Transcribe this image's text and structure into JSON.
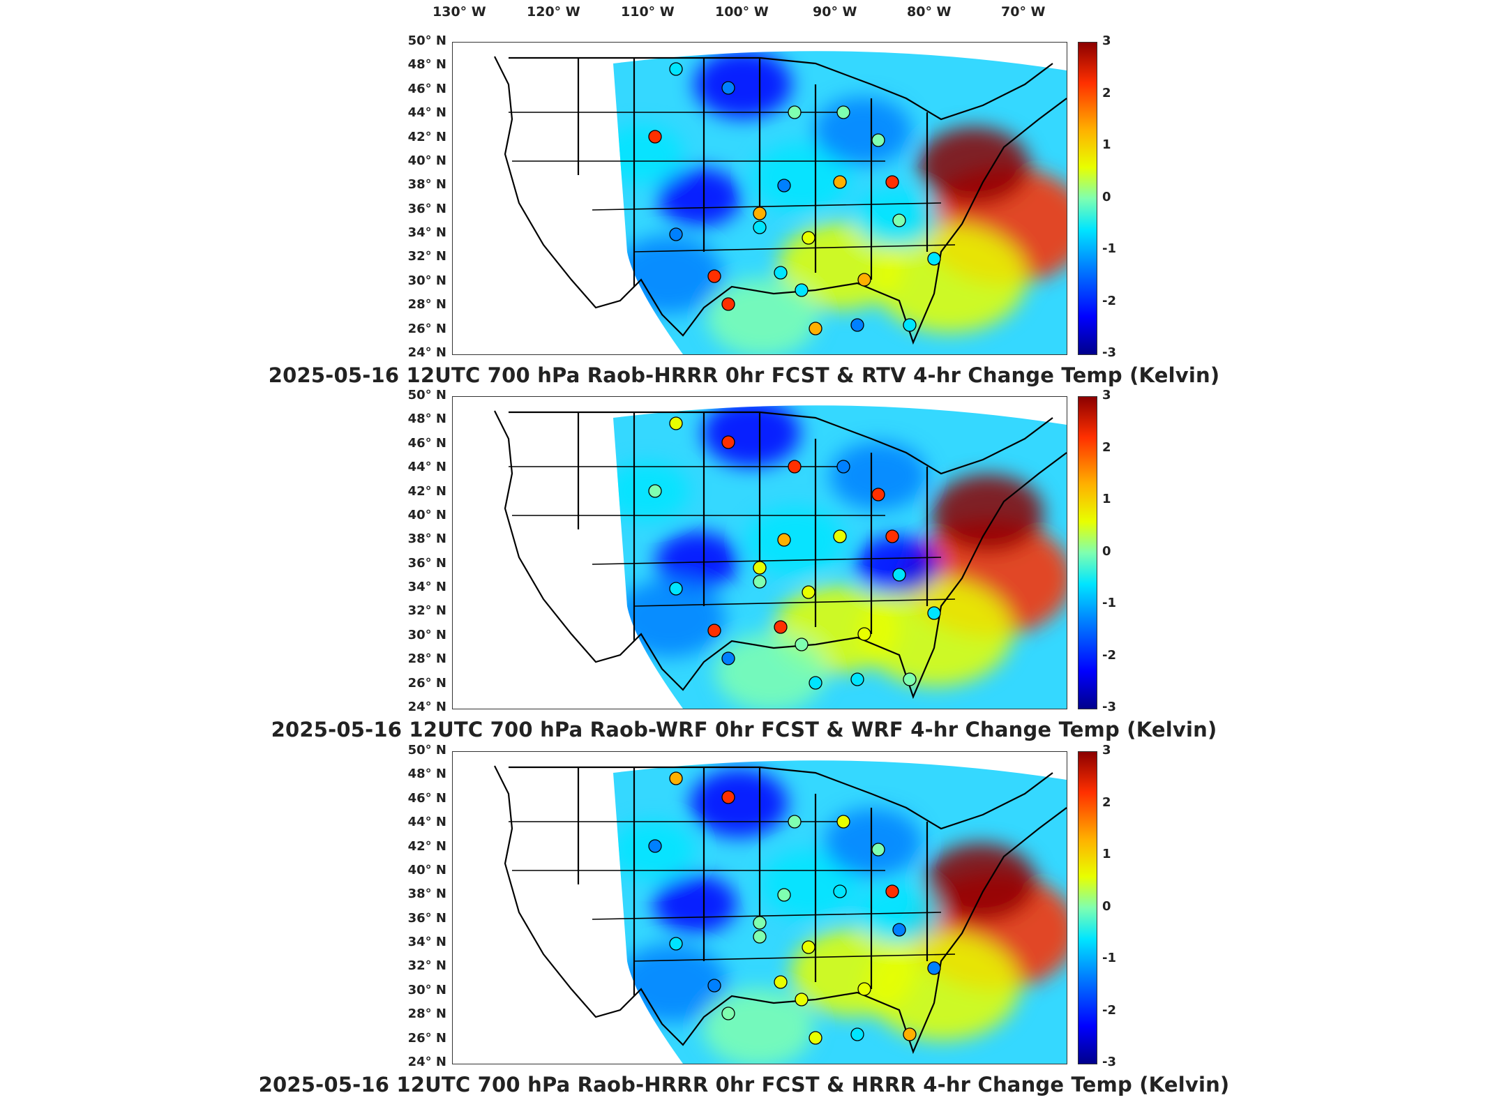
{
  "longitude_labels": [
    "130° W",
    "120° W",
    "110° W",
    "100° W",
    "90° W",
    "80° W",
    "70° W"
  ],
  "latitude_labels": [
    "50° N",
    "48° N",
    "46° N",
    "44° N",
    "42° N",
    "40° N",
    "38° N",
    "36° N",
    "34° N",
    "32° N",
    "30° N",
    "28° N",
    "26° N",
    "24° N"
  ],
  "colorbar_ticks": [
    "3",
    "2",
    "1",
    "0",
    "-1",
    "-2",
    "-3"
  ],
  "colorbar_range": [
    -3,
    3
  ],
  "colormap": [
    "#00008b",
    "#0000ff",
    "#0080ff",
    "#00e5ff",
    "#7fffb0",
    "#e8ff00",
    "#ffb000",
    "#ff3000",
    "#8b0000"
  ],
  "panels": [
    {
      "title": "2025-05-16 12UTC 700 hPa Raob-HRRR 0hr FCST & RTV 4-hr Change Temp (Kelvin)"
    },
    {
      "title": "2025-05-16 12UTC 700 hPa Raob-WRF 0hr FCST & WRF 4-hr Change Temp (Kelvin)"
    },
    {
      "title": "2025-05-16 12UTC 700 hPa Raob-HRRR 0hr FCST & HRRR 4-hr Change Temp (Kelvin)"
    }
  ]
}
